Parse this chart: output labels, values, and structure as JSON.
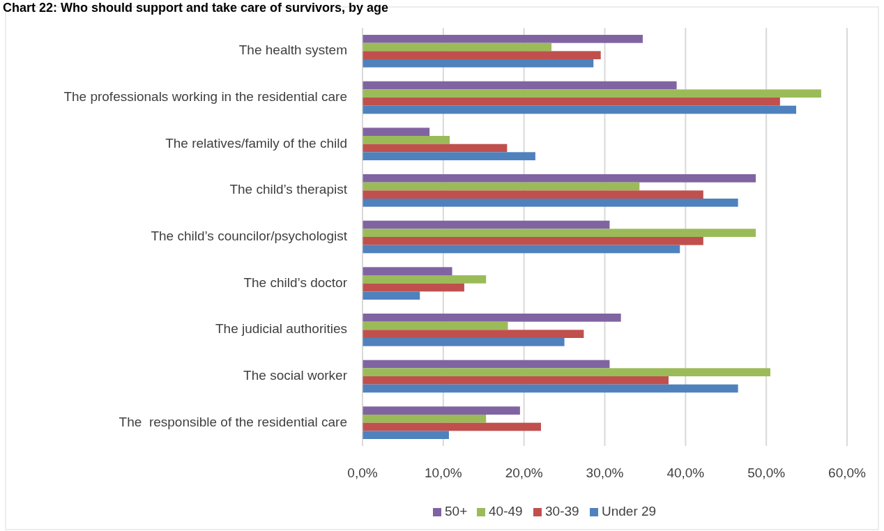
{
  "chart_data": {
    "type": "bar",
    "orientation": "horizontal",
    "title": "Chart 22: Who should support and take care of survivors, by age",
    "categories": [
      "The health system",
      "The professionals working in the residential care",
      "The relatives/family of the child",
      "The child’s therapist",
      "The child’s councilor/psychologist",
      "The child’s doctor",
      "The judicial authorities",
      "The social worker",
      "The  responsible of the residential care"
    ],
    "series": [
      {
        "name": "50+",
        "color": "#8064a2",
        "values": [
          34.7,
          38.9,
          8.3,
          48.7,
          30.6,
          11.1,
          32.0,
          30.6,
          19.5
        ]
      },
      {
        "name": "40-49",
        "color": "#9bbb59",
        "values": [
          23.4,
          56.8,
          10.8,
          34.3,
          48.7,
          15.3,
          18.0,
          50.5,
          15.3
        ]
      },
      {
        "name": "30-39",
        "color": "#c0504d",
        "values": [
          29.5,
          51.7,
          17.9,
          42.2,
          42.2,
          12.6,
          27.4,
          37.9,
          22.1
        ]
      },
      {
        "name": "Under 29",
        "color": "#4f81bd",
        "values": [
          28.6,
          53.7,
          21.4,
          46.5,
          39.3,
          7.1,
          25.0,
          46.5,
          10.7
        ]
      }
    ],
    "xlim": [
      0,
      60
    ],
    "xticks": [
      {
        "value": 0,
        "label": "0,0%"
      },
      {
        "value": 10,
        "label": "10,0%"
      },
      {
        "value": 20,
        "label": "20,0%"
      },
      {
        "value": 30,
        "label": "30,0%"
      },
      {
        "value": 40,
        "label": "40,0%"
      },
      {
        "value": 50,
        "label": "50,0%"
      },
      {
        "value": 60,
        "label": "60,0%"
      }
    ],
    "grid": "x",
    "legend": "bottom"
  }
}
